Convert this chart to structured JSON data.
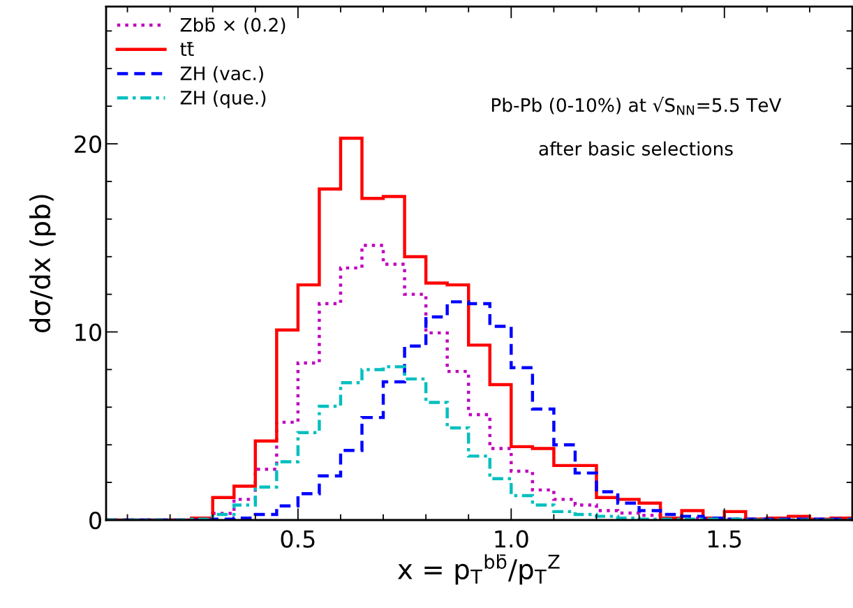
{
  "chart_data": {
    "type": "histogram",
    "xlabel": "x = p$_{T}$$^{bb̄}$/p$_{T}$$^{Z}$",
    "ylabel": "dσ/dx (pb)",
    "annotations": [
      "Pb-Pb (0-10%) at √S$_{NN}$=5.5 TeV",
      "after basic selections"
    ],
    "bins": [
      0.05,
      0.1,
      0.15,
      0.2,
      0.25,
      0.3,
      0.35,
      0.4,
      0.45,
      0.5,
      0.55,
      0.6,
      0.65,
      0.7,
      0.75,
      0.8,
      0.85,
      0.9,
      0.95,
      1.0,
      1.05,
      1.1,
      1.15,
      1.2,
      1.25,
      1.3,
      1.35,
      1.4,
      1.45,
      1.5,
      1.55,
      1.6,
      1.65,
      1.7,
      1.75,
      1.8
    ],
    "series": [
      {
        "name": "Zbb̄ × (0.2)",
        "color": "#bf00bf",
        "line_style": "dotted",
        "values": [
          0,
          0,
          0,
          0,
          0.1,
          0.35,
          1.1,
          2.7,
          5.2,
          8.35,
          11.5,
          13.4,
          14.6,
          13.6,
          12.0,
          9.95,
          7.9,
          5.6,
          3.8,
          2.6,
          1.6,
          1.1,
          0.8,
          0.5,
          0.37,
          0.25,
          0.1,
          0.1,
          0.05,
          0.05,
          0.05,
          0,
          0,
          0,
          0
        ]
      },
      {
        "name": "tt̄",
        "color": "#ff0000",
        "line_style": "solid",
        "values": [
          0,
          0,
          0,
          0,
          0.1,
          1.2,
          1.8,
          4.2,
          10.1,
          12.5,
          17.6,
          20.3,
          17.1,
          17.2,
          14.0,
          12.6,
          12.5,
          9.3,
          7.2,
          3.9,
          3.8,
          2.9,
          2.9,
          1.2,
          1.1,
          0.9,
          0.1,
          0.5,
          0.1,
          0.45,
          0.05,
          0.1,
          0.2,
          0.05,
          0.1
        ]
      },
      {
        "name": "ZH (vac.)",
        "color": "#0000ff",
        "line_style": "dashed",
        "values": [
          0,
          0,
          0,
          0,
          0,
          0.05,
          0.1,
          0.3,
          0.75,
          1.4,
          2.35,
          3.7,
          5.45,
          7.35,
          9.25,
          10.8,
          11.6,
          11.5,
          10.3,
          8.1,
          5.9,
          4.0,
          2.5,
          1.5,
          0.9,
          0.5,
          0.3,
          0.2,
          0.1,
          0.05,
          0.05,
          0.05,
          0.05,
          0.05,
          0.05
        ]
      },
      {
        "name": "ZH (que.)",
        "color": "#00bfbf",
        "line_style": "dashdot",
        "values": [
          0,
          0,
          0,
          0,
          0.05,
          0.3,
          0.8,
          1.75,
          3.1,
          4.65,
          6.05,
          7.3,
          8.0,
          8.15,
          7.5,
          6.25,
          4.9,
          3.4,
          2.2,
          1.3,
          0.8,
          0.45,
          0.3,
          0.2,
          0.1,
          0.05,
          0.05,
          0.05,
          0.05,
          0.05,
          0,
          0,
          0,
          0,
          0
        ]
      }
    ],
    "xlim": [
      0.05,
      1.8
    ],
    "ylim": [
      0,
      27.3
    ],
    "xticks": [
      0.5,
      {
        "value": 1.0,
        "label": "1.0"
      },
      1.5
    ],
    "yticks": [
      0,
      10,
      20
    ],
    "grid": false,
    "legend": "top left"
  }
}
